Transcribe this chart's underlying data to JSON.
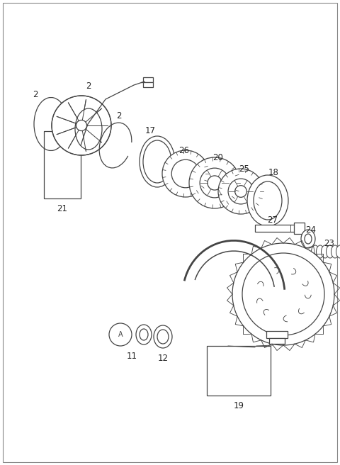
{
  "background_color": "#ffffff",
  "border_color": "#000000",
  "line_color": "#444444",
  "fig_width": 4.8,
  "fig_height": 6.56,
  "dpi": 100,
  "label_fontsize": 8.5,
  "label_color": "#222222"
}
